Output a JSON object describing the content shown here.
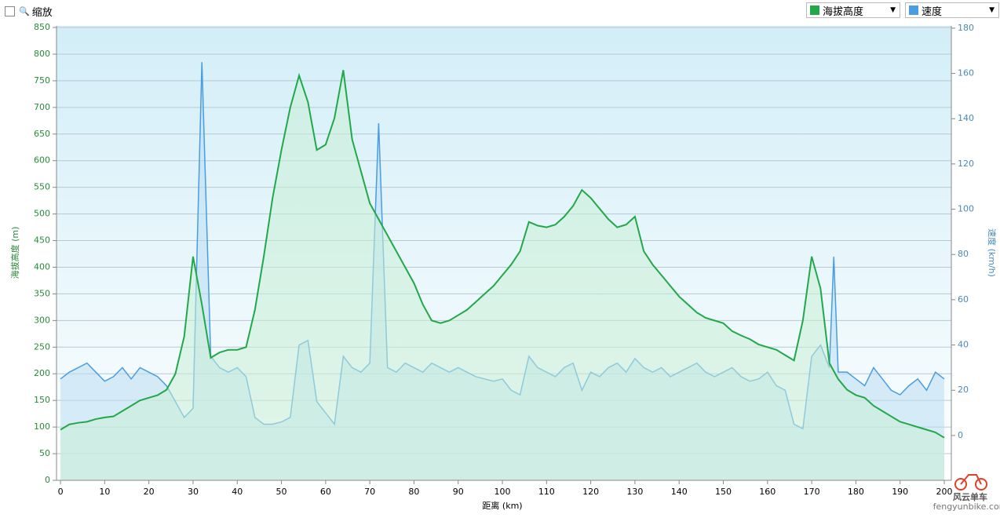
{
  "ui": {
    "zoom_label": "缩放"
  },
  "watermark": {
    "name": "风云单车",
    "site": "fengyunbike.com"
  },
  "chart_data": {
    "type": "line",
    "x_label": "距离 (km)",
    "y_label": "海拔高度 (m)",
    "y2_label": "速度 (km/h)",
    "x": [
      0,
      2,
      4,
      6,
      8,
      10,
      12,
      14,
      16,
      18,
      20,
      22,
      24,
      26,
      28,
      30,
      32,
      34,
      36,
      38,
      40,
      42,
      44,
      46,
      48,
      50,
      52,
      54,
      56,
      58,
      60,
      62,
      64,
      66,
      68,
      70,
      72,
      74,
      76,
      78,
      80,
      82,
      84,
      86,
      88,
      90,
      92,
      94,
      96,
      98,
      100,
      102,
      104,
      106,
      108,
      110,
      112,
      114,
      116,
      118,
      120,
      122,
      124,
      126,
      128,
      130,
      132,
      134,
      136,
      138,
      140,
      142,
      144,
      146,
      148,
      150,
      152,
      154,
      156,
      158,
      160,
      162,
      164,
      166,
      168,
      170,
      172,
      174,
      175,
      176,
      178,
      180,
      182,
      184,
      186,
      188,
      190,
      192,
      194,
      196,
      198,
      200
    ],
    "series": [
      {
        "name": "海拔高度",
        "color": "#22a84a",
        "fill": "#c9efd6",
        "values": [
          95,
          105,
          108,
          110,
          115,
          118,
          120,
          130,
          140,
          150,
          155,
          160,
          170,
          200,
          270,
          420,
          330,
          230,
          240,
          245,
          245,
          250,
          320,
          420,
          530,
          620,
          700,
          760,
          710,
          620,
          630,
          680,
          770,
          640,
          580,
          520,
          490,
          460,
          430,
          400,
          370,
          330,
          300,
          295,
          300,
          310,
          320,
          335,
          350,
          365,
          385,
          405,
          430,
          485,
          478,
          475,
          480,
          495,
          515,
          545,
          530,
          510,
          490,
          475,
          480,
          495,
          430,
          405,
          385,
          365,
          345,
          330,
          315,
          305,
          300,
          295,
          280,
          272,
          265,
          255,
          250,
          245,
          235,
          225,
          300,
          420,
          360,
          220,
          205,
          190,
          170,
          160,
          155,
          140,
          130,
          120,
          110,
          105,
          100,
          95,
          90,
          80
        ]
      },
      {
        "name": "速度",
        "color": "#4a9de0",
        "fill": "#b9dcf2",
        "axis": "y2",
        "values": [
          25,
          28,
          30,
          32,
          28,
          24,
          26,
          30,
          25,
          30,
          28,
          26,
          22,
          15,
          8,
          12,
          165,
          35,
          30,
          28,
          30,
          26,
          8,
          5,
          5,
          6,
          8,
          40,
          42,
          15,
          10,
          5,
          35,
          30,
          28,
          32,
          138,
          30,
          28,
          32,
          30,
          28,
          32,
          30,
          28,
          30,
          28,
          26,
          25,
          24,
          25,
          20,
          18,
          35,
          30,
          28,
          26,
          30,
          32,
          20,
          28,
          26,
          30,
          32,
          28,
          34,
          30,
          28,
          30,
          26,
          28,
          30,
          32,
          28,
          26,
          28,
          30,
          26,
          24,
          25,
          28,
          22,
          20,
          5,
          3,
          35,
          40,
          30,
          79,
          28,
          28,
          25,
          22,
          30,
          25,
          20,
          18,
          22,
          25,
          20,
          28,
          25
        ]
      }
    ],
    "xlim": [
      -0.9,
      201.6
    ],
    "xticks": [
      0,
      10,
      20,
      30,
      40,
      50,
      60,
      70,
      80,
      90,
      100,
      110,
      120,
      130,
      140,
      150,
      160,
      170,
      180,
      190,
      200
    ],
    "ylim": [
      0,
      853
    ],
    "yticks": [
      0,
      50,
      100,
      150,
      200,
      250,
      300,
      350,
      400,
      450,
      500,
      550,
      600,
      650,
      700,
      750,
      800,
      850
    ],
    "y2lim": [
      -19.8,
      181
    ],
    "y2ticks": [
      0,
      20,
      40,
      60,
      80,
      100,
      120,
      140,
      160,
      180
    ],
    "grid": true
  }
}
